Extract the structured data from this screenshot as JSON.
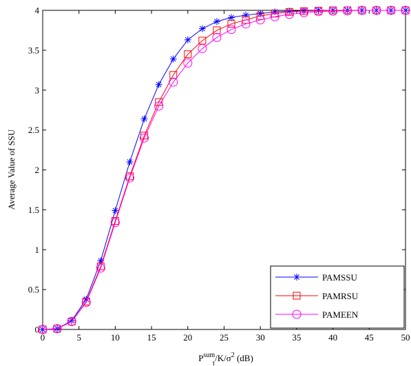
{
  "chart_data": {
    "type": "line",
    "title": "",
    "ylabel": "Average Value of SSU",
    "xlabel": {
      "base": "P",
      "superscript": "sum",
      "subscript": "t",
      "rest": "/K/σ",
      "rest_superscript": "2",
      "unit": " (dB)"
    },
    "xlim": [
      0,
      50
    ],
    "ylim": [
      0,
      4
    ],
    "xticks": [
      0,
      5,
      10,
      15,
      20,
      25,
      30,
      35,
      40,
      45,
      50
    ],
    "yticks": [
      0,
      0.5,
      1,
      1.5,
      2,
      2.5,
      3,
      3.5,
      4
    ],
    "xtick_labels": [
      "0",
      "5",
      "10",
      "15",
      "20",
      "25",
      "30",
      "35",
      "40",
      "45",
      "50"
    ],
    "ytick_labels": [
      "0",
      "0.5",
      "1",
      "1.5",
      "2",
      "2.5",
      "3",
      "3.5",
      "4"
    ],
    "grid": false,
    "legend_position": "bottom-right",
    "x": [
      0,
      2,
      4,
      6,
      8,
      10,
      12,
      14,
      16,
      18,
      20,
      22,
      24,
      26,
      28,
      30,
      32,
      34,
      36,
      38,
      40,
      42,
      44,
      46,
      48,
      50
    ],
    "series": [
      {
        "name": "PAMSSU",
        "color": "#0000ff",
        "marker": "asterisk",
        "values": [
          0.0,
          0.01,
          0.11,
          0.38,
          0.86,
          1.49,
          2.1,
          2.64,
          3.07,
          3.39,
          3.63,
          3.77,
          3.86,
          3.91,
          3.94,
          3.96,
          3.98,
          3.99,
          3.995,
          4.0,
          4.0,
          4.0,
          4.0,
          4.0,
          4.0,
          4.0
        ]
      },
      {
        "name": "PAMRSU",
        "color": "#ff0000",
        "marker": "square",
        "values": [
          0.0,
          0.01,
          0.1,
          0.35,
          0.79,
          1.36,
          1.92,
          2.43,
          2.85,
          3.19,
          3.45,
          3.62,
          3.75,
          3.83,
          3.88,
          3.93,
          3.96,
          3.98,
          3.99,
          3.995,
          4.0,
          4.0,
          4.0,
          4.0,
          4.0,
          4.0
        ]
      },
      {
        "name": "PAMEEN",
        "color": "#ff00ff",
        "marker": "circle",
        "values": [
          0.0,
          0.01,
          0.1,
          0.34,
          0.77,
          1.34,
          1.9,
          2.4,
          2.8,
          3.1,
          3.34,
          3.52,
          3.66,
          3.76,
          3.83,
          3.88,
          3.92,
          3.95,
          3.97,
          3.985,
          3.99,
          3.995,
          4.0,
          4.0,
          4.0,
          4.0
        ]
      }
    ]
  }
}
